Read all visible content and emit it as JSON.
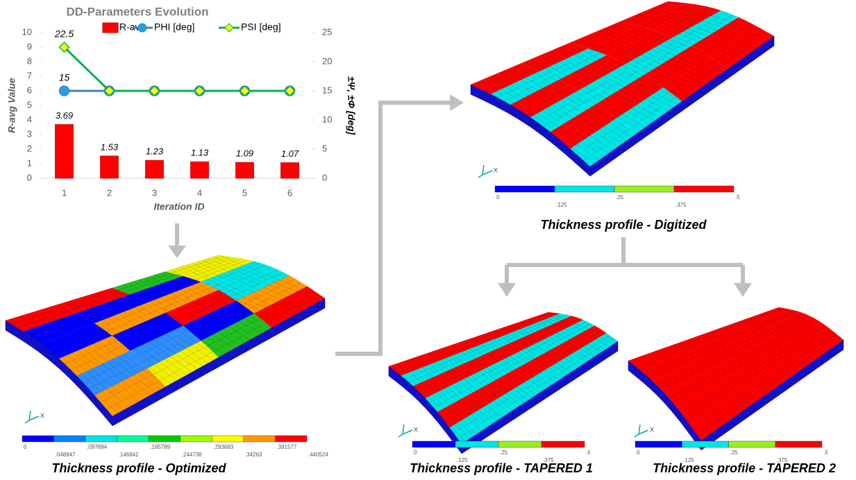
{
  "chart_data": {
    "type": "combo",
    "title": "DD-Parameters Evolution",
    "x_label": "Iteration ID",
    "y_label": "R-avg Value",
    "y2_label": "±Ψ, ±Φ [deg]",
    "categories": [
      "1",
      "2",
      "3",
      "4",
      "5",
      "6"
    ],
    "series": [
      {
        "name": "R-avg",
        "type": "bar",
        "color": "#ff0000",
        "values": [
          3.69,
          1.53,
          1.23,
          1.13,
          1.09,
          1.07
        ]
      },
      {
        "name": "PHI [deg]",
        "type": "line",
        "axis": "y2",
        "color": "#4a7ebb",
        "marker_color": "#1fa3e8",
        "values": [
          15,
          15,
          15,
          15,
          15,
          15
        ]
      },
      {
        "name": "PSI [deg]",
        "type": "line",
        "axis": "y2",
        "color": "#00b050",
        "marker_color": "#ffff00",
        "values": [
          22.5,
          15,
          15,
          15,
          15,
          15
        ]
      }
    ],
    "ylim": [
      0,
      10
    ],
    "yticks": [
      0,
      1,
      2,
      3,
      4,
      5,
      6,
      7,
      8,
      9,
      10
    ],
    "y2lim": [
      0,
      25
    ],
    "y2ticks": [
      0,
      5,
      10,
      15,
      20,
      25
    ],
    "grid": false,
    "legend": "top"
  },
  "panels": [
    {
      "caption": "Thickness profile  - Optimized",
      "triad": "X",
      "scale": [
        "0",
        ".048947",
        ".097894",
        ".146842",
        ".195789",
        ".244736",
        ".293683",
        ".34263",
        ".391577",
        ".440524"
      ]
    },
    {
      "caption": "Thickness profile  - Digitized",
      "triad": "X",
      "scale": [
        "0",
        ".125",
        ".25",
        ".375",
        ".5"
      ]
    },
    {
      "caption": "Thickness profile  - TAPERED 1",
      "triad": "X",
      "scale": [
        "0",
        ".125",
        ".25",
        ".375",
        ".5"
      ]
    },
    {
      "caption": "Thickness profile  - TAPERED 2",
      "triad": "X",
      "scale": [
        "0",
        ".125",
        ".25",
        ".375",
        ".5"
      ]
    }
  ]
}
